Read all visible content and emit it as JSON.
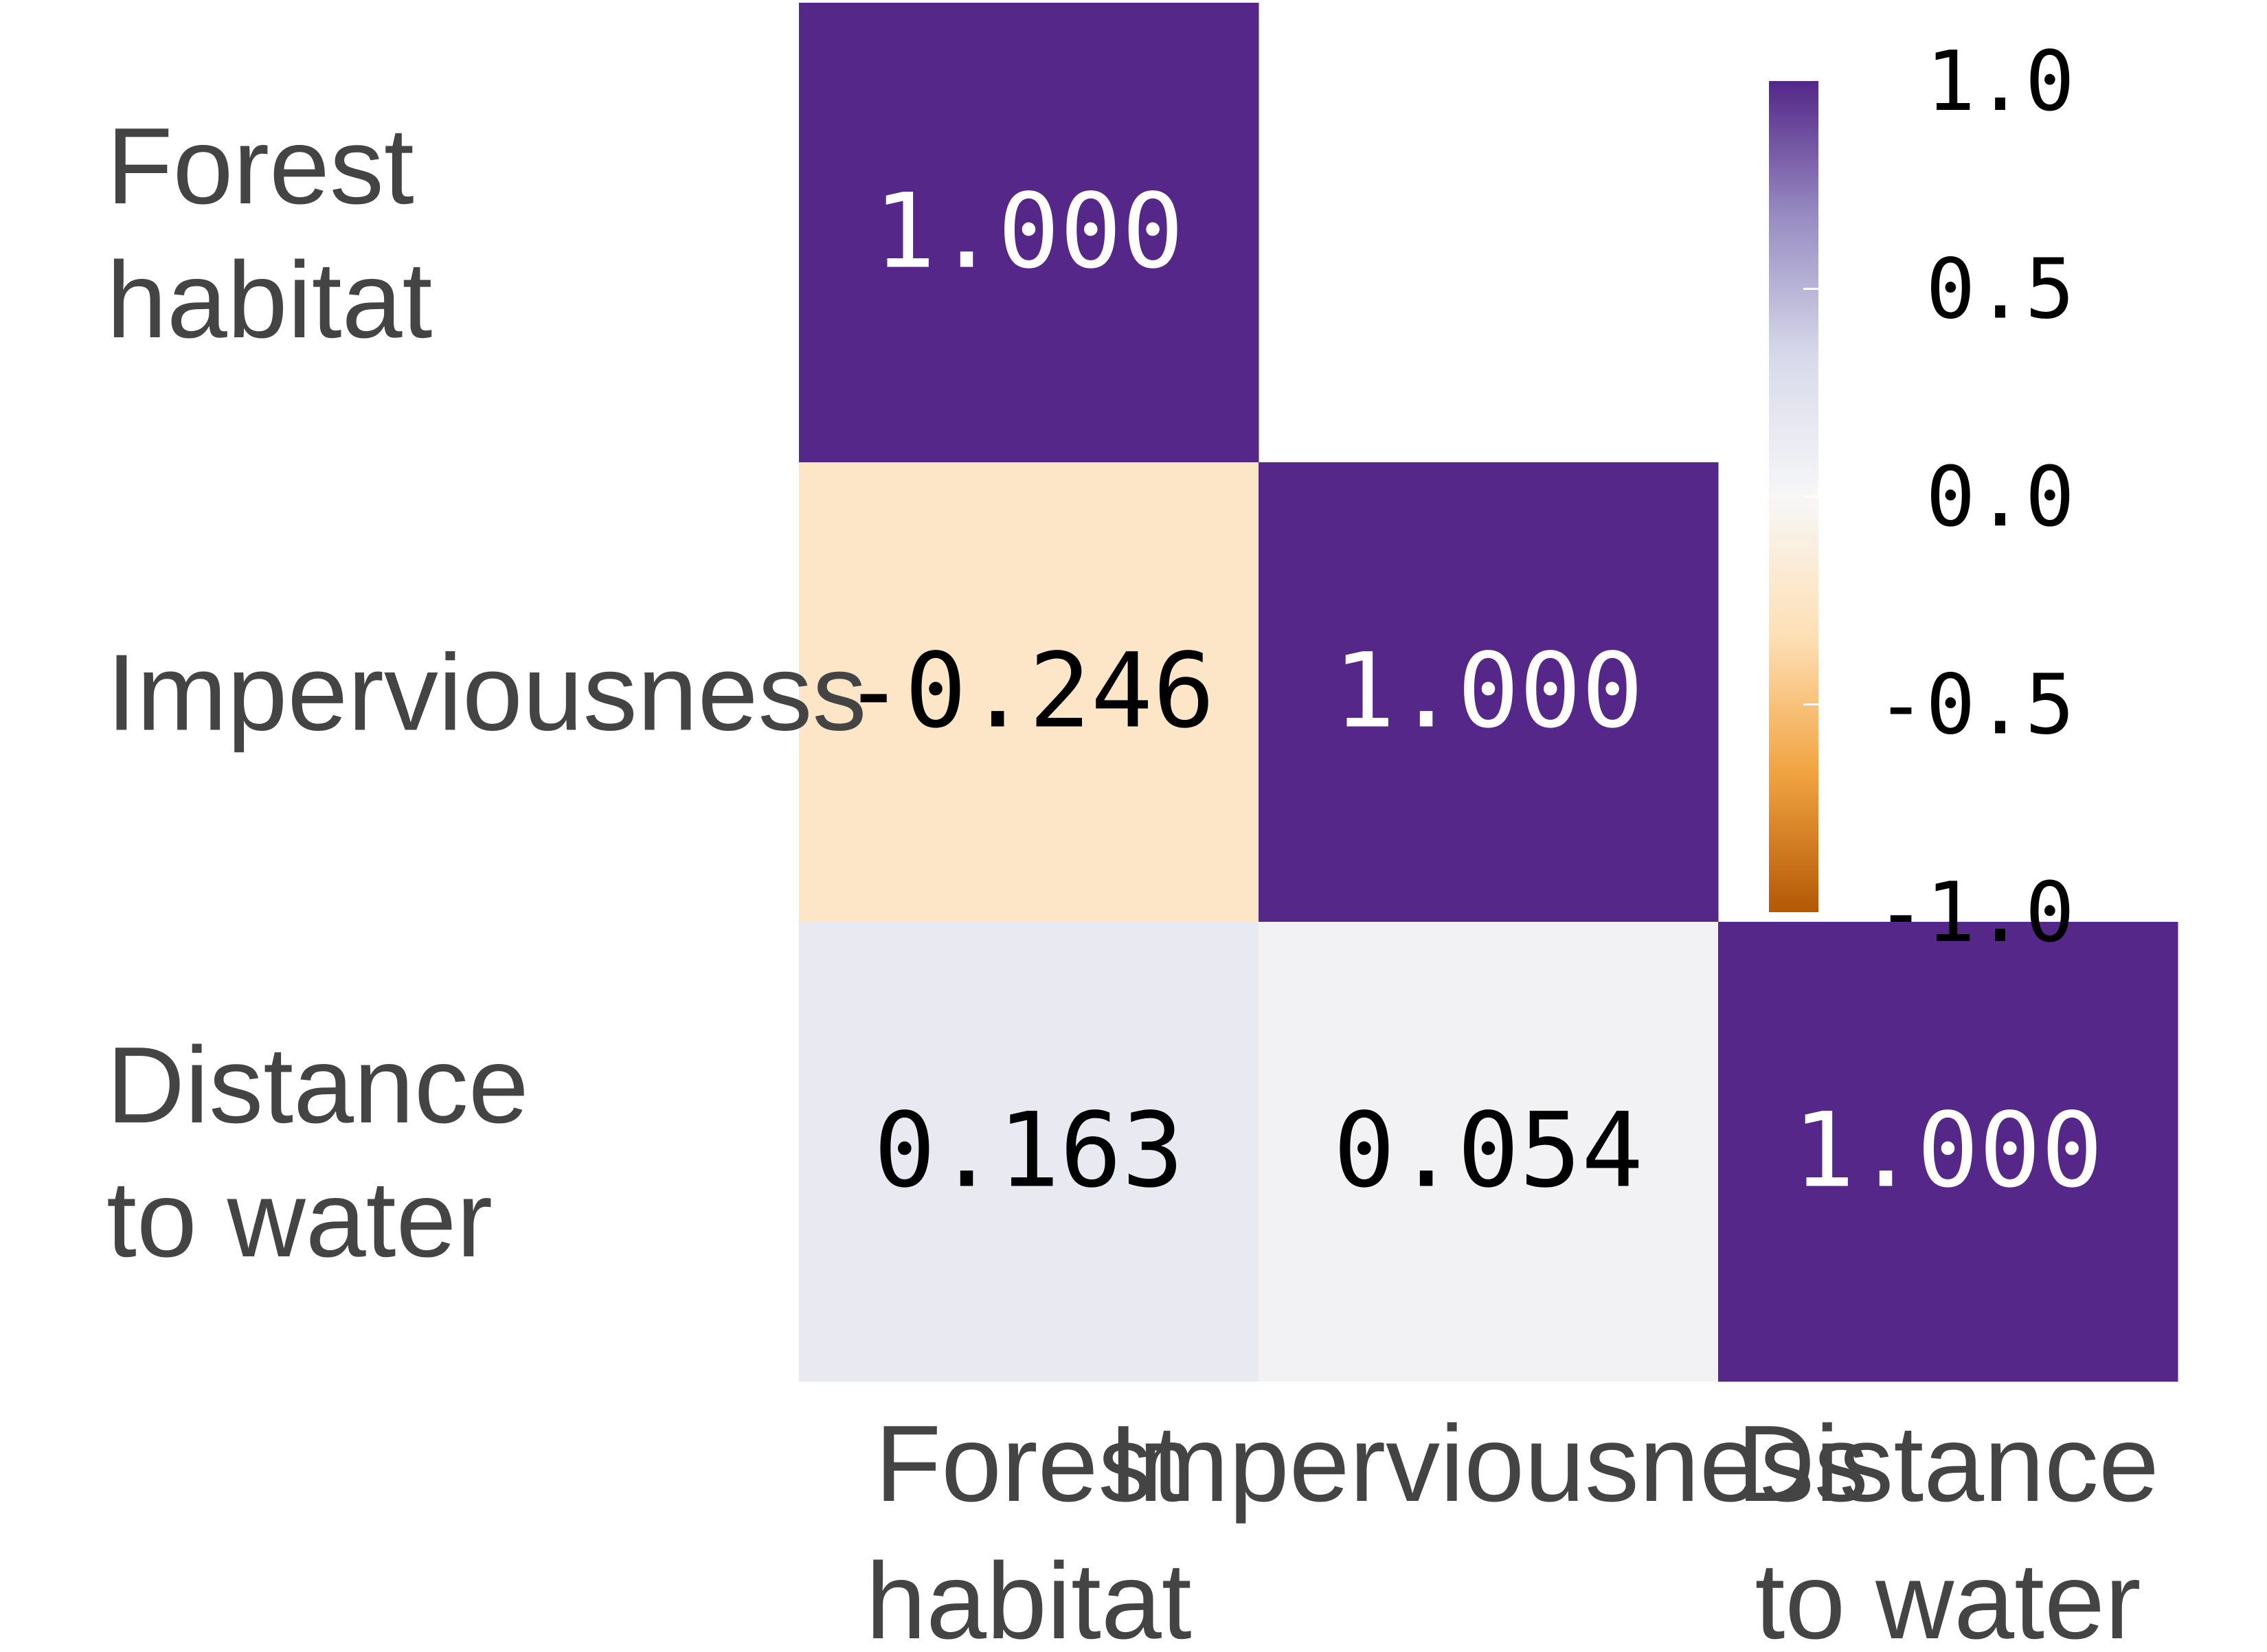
{
  "chart_data": {
    "type": "heatmap",
    "title": "",
    "xlabel": "",
    "ylabel": "",
    "row_labels": [
      [
        "Forest",
        "habitat"
      ],
      [
        "Imperviousness"
      ],
      [
        "Distance",
        "to water"
      ]
    ],
    "col_labels": [
      [
        "Forest",
        "habitat"
      ],
      [
        "Imperviousness"
      ],
      [
        "Distance",
        "to water"
      ]
    ],
    "cells": [
      {
        "row": 0,
        "col": 0,
        "value": 1.0,
        "label": "1.000"
      },
      {
        "row": 1,
        "col": 0,
        "value": -0.246,
        "label": "-0.246"
      },
      {
        "row": 1,
        "col": 1,
        "value": 1.0,
        "label": "1.000"
      },
      {
        "row": 2,
        "col": 0,
        "value": 0.163,
        "label": "0.163"
      },
      {
        "row": 2,
        "col": 1,
        "value": 0.054,
        "label": "0.054"
      },
      {
        "row": 2,
        "col": 2,
        "value": 1.0,
        "label": "1.000"
      }
    ],
    "masked": "upper triangle",
    "colorbar": {
      "vmin": -1.0,
      "vmax": 1.0,
      "ticks": [
        1.0,
        0.5,
        0.0,
        -0.5,
        -1.0
      ],
      "tick_labels": [
        "1.0",
        "0.5",
        "0.0",
        "-0.5",
        "-1.0"
      ],
      "colormap": "PuOr",
      "colors_low_to_high": [
        "#b35806",
        "#f1a340",
        "#fee0b6",
        "#f7f7f7",
        "#d8daeb",
        "#998ec3",
        "#542788"
      ]
    }
  }
}
